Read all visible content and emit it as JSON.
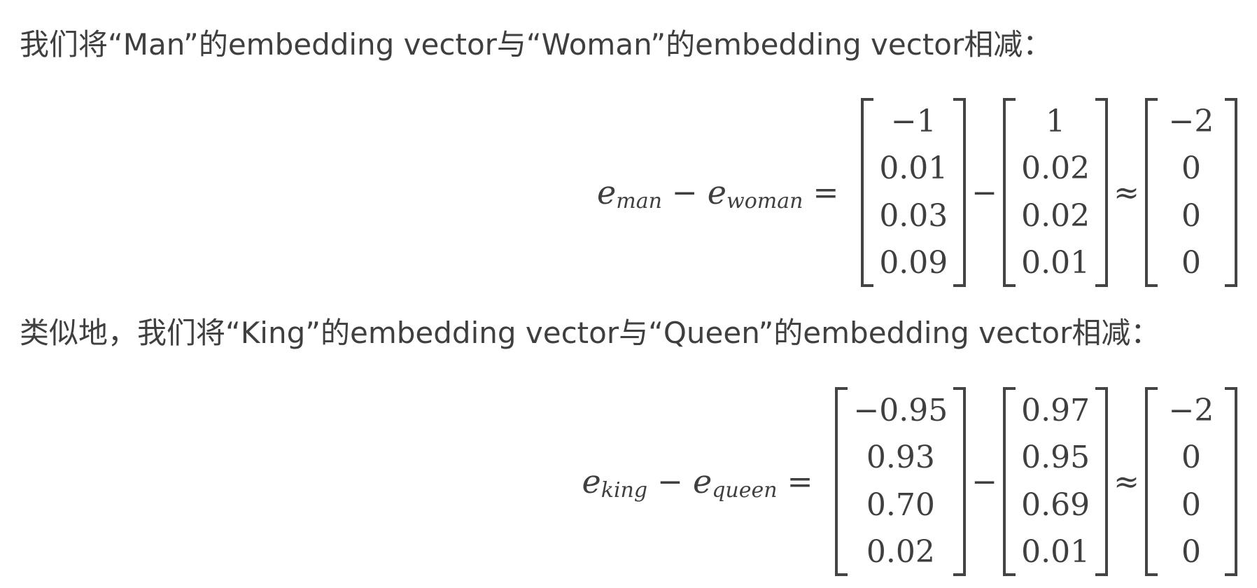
{
  "paragraphs": {
    "first": "我们将“Man”的embedding vector与“Woman”的embedding vector相减：",
    "second": "类似地，我们将“King”的embedding vector与“Queen”的embedding vector相减："
  },
  "equations": [
    {
      "lhs": {
        "var_a": "e",
        "sub_a": "man",
        "minus": "−",
        "var_b": "e",
        "sub_b": "woman",
        "equals": "="
      },
      "matrix_a": [
        "−1",
        "0.01",
        "0.03",
        "0.09"
      ],
      "op": "−",
      "matrix_b": [
        "1",
        "0.02",
        "0.02",
        "0.01"
      ],
      "approx": "≈",
      "matrix_c": [
        "−2",
        "0",
        "0",
        "0"
      ]
    },
    {
      "lhs": {
        "var_a": "e",
        "sub_a": "king",
        "minus": "−",
        "var_b": "e",
        "sub_b": "queen",
        "equals": "="
      },
      "matrix_a": [
        "−0.95",
        "0.93",
        "0.70",
        "0.02"
      ],
      "op": "−",
      "matrix_b": [
        "0.97",
        "0.95",
        "0.69",
        "0.01"
      ],
      "approx": "≈",
      "matrix_c": [
        "−2",
        "0",
        "0",
        "0"
      ]
    }
  ]
}
